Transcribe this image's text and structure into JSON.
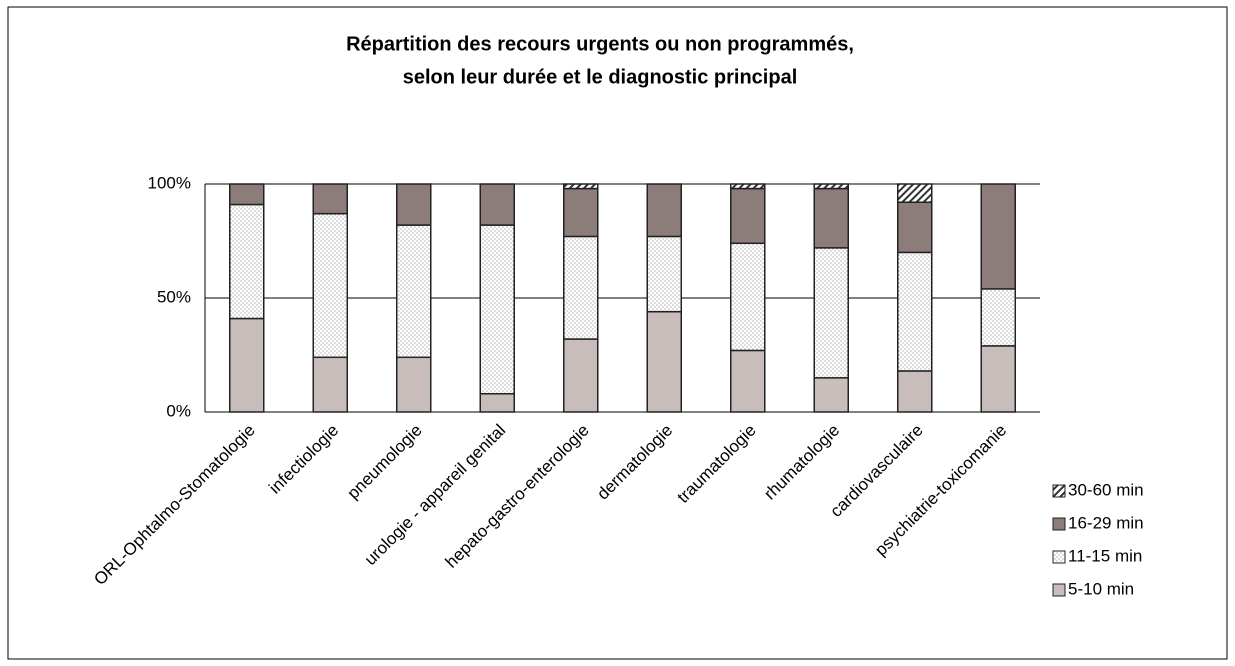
{
  "chart_data": {
    "type": "stacked_bar",
    "title": [
      "Répartition des recours urgents ou non programmés,",
      "selon leur durée et le diagnostic principal"
    ],
    "categories": [
      "ORL-Ophtalmo-Stomatologie",
      "infectiologie",
      "pneumologie",
      "urologie - appareil genital",
      "hepato-gastro-enterologie",
      "dermatologie",
      "traumatologie",
      "rhumatologie",
      "cardiovasculaire",
      "psychiatrie-toxicomanie"
    ],
    "series": [
      {
        "name": "5-10 min",
        "color": "#c9bdbb",
        "fill_style": "solid",
        "values": [
          41,
          24,
          24,
          8,
          32,
          44,
          27,
          15,
          18,
          29
        ]
      },
      {
        "name": "11-15 min",
        "color": "#ffffff",
        "fill_style": "dots",
        "values": [
          50,
          63,
          58,
          74,
          45,
          33,
          47,
          57,
          52,
          25
        ]
      },
      {
        "name": "16-29 min",
        "color": "#8c7d7a",
        "fill_style": "solid",
        "values": [
          9,
          13,
          18,
          18,
          21,
          23,
          24,
          26,
          22,
          46
        ]
      },
      {
        "name": "30-60 min",
        "color": "#ffffff",
        "fill_style": "hatch",
        "values": [
          0,
          0,
          0,
          0,
          2,
          0,
          2,
          2,
          8,
          0
        ]
      }
    ],
    "ylim": [
      0,
      100
    ],
    "yticks": [
      {
        "value": 0,
        "label": "0%"
      },
      {
        "value": 50,
        "label": "50%"
      },
      {
        "value": 100,
        "label": "100%"
      }
    ],
    "grid": true,
    "legend": "right"
  }
}
